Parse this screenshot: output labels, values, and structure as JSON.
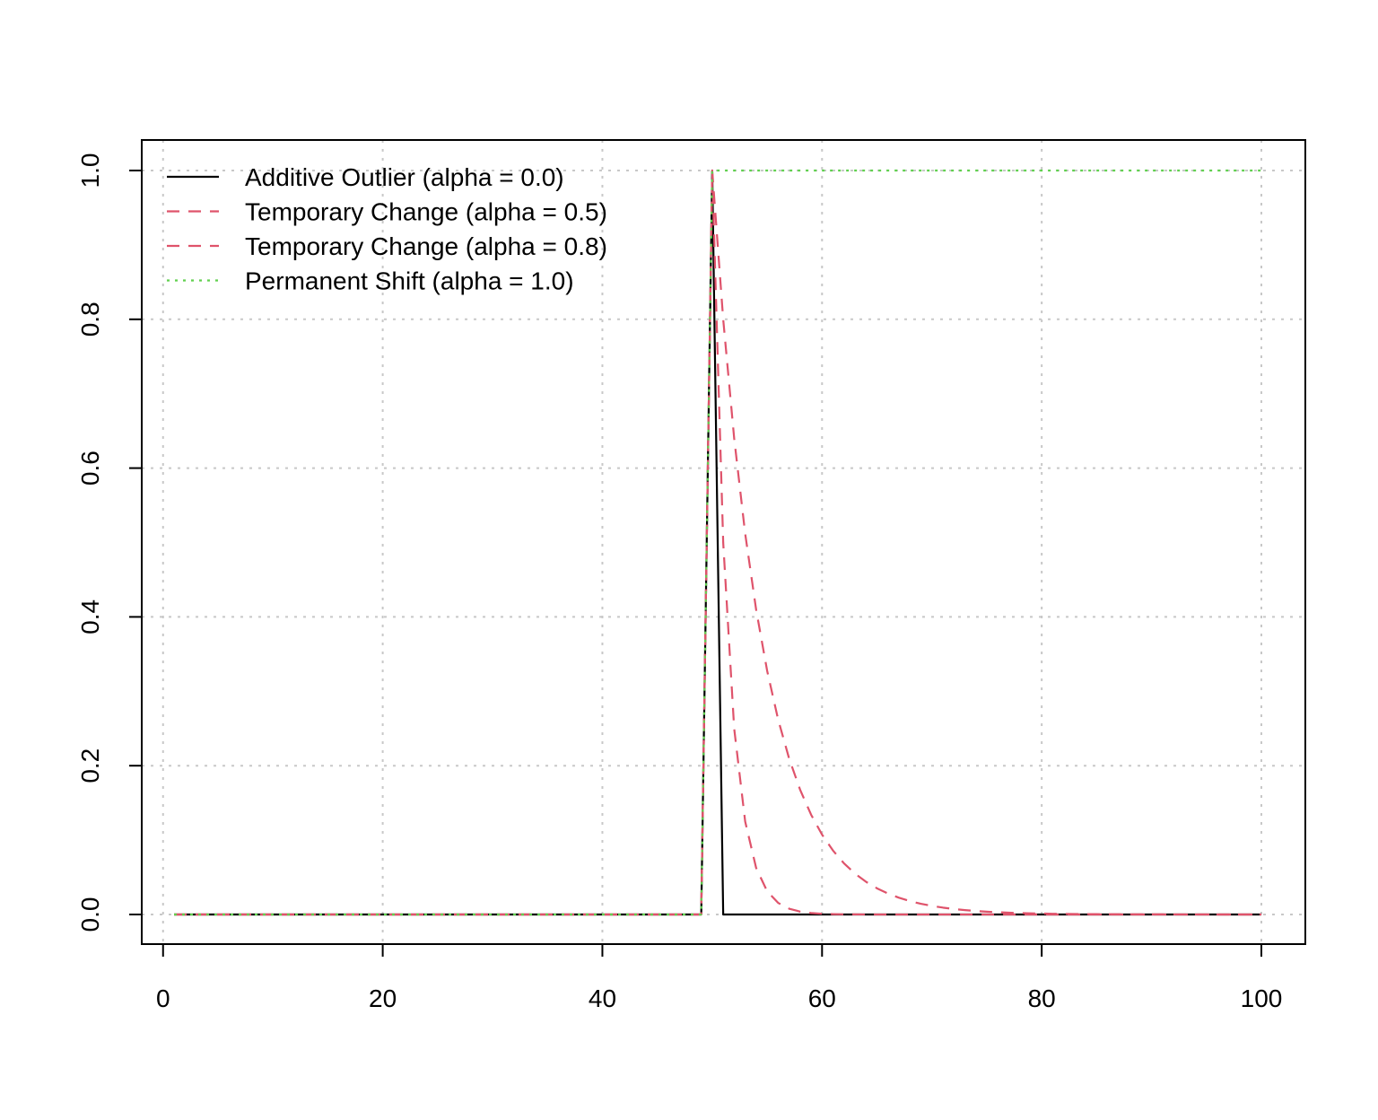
{
  "chart_data": {
    "type": "line",
    "title": "",
    "xlabel": "",
    "ylabel": "",
    "xlim": [
      1,
      100
    ],
    "ylim": [
      0,
      1
    ],
    "x_ticks": [
      "0",
      "20",
      "40",
      "60",
      "80",
      "100"
    ],
    "y_ticks": [
      "0.0",
      "0.2",
      "0.4",
      "0.6",
      "0.8",
      "1.0"
    ],
    "grid": true,
    "legend_position": "top-left",
    "x": {
      "start": 1,
      "end": 100,
      "step": 1
    },
    "event_index": 50,
    "series": [
      {
        "name": "Additive Outlier (alpha = 0.0)",
        "alpha": 0.0,
        "color": "#000000",
        "line_style": "solid"
      },
      {
        "name": "Temporary Change (alpha = 0.5)",
        "alpha": 0.5,
        "color": "#DF536B",
        "line_style": "dashed"
      },
      {
        "name": "Temporary Change (alpha = 0.8)",
        "alpha": 0.8,
        "color": "#DF536B",
        "line_style": "dashed"
      },
      {
        "name": "Permanent Shift (alpha = 1.0)",
        "alpha": 1.0,
        "color": "#61D04F",
        "line_style": "dotted"
      }
    ],
    "grid_color": "#c8c8c8"
  }
}
